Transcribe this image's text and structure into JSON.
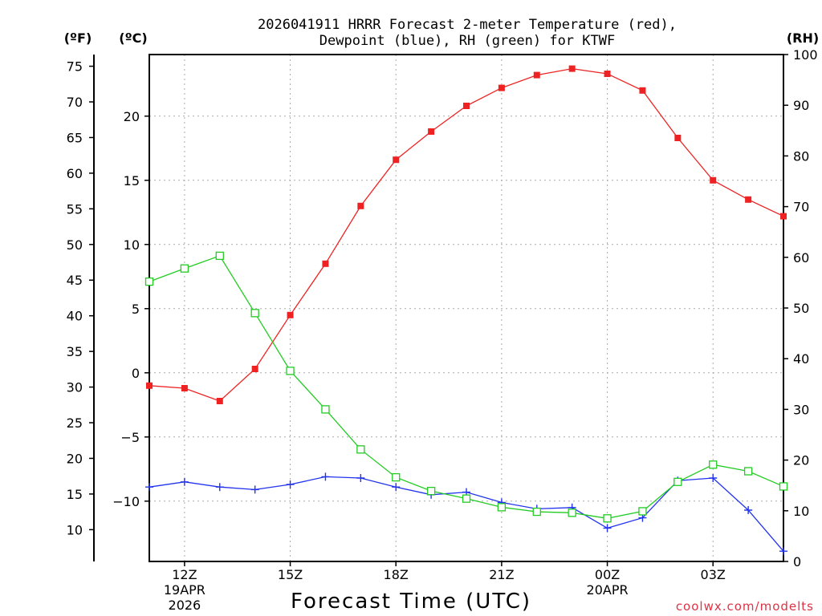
{
  "chart_data": {
    "type": "line",
    "title_line1": "2026041911 HRRR Forecast 2-meter Temperature (red),",
    "title_line2": "Dewpoint (blue), RH (green) for KTWF",
    "xlabel": "Forecast Time (UTC)",
    "left_outer_unit": "(ºF)",
    "left_inner_unit": "(ºC)",
    "right_unit": "(RH)",
    "credit": "coolwx.com/modelts",
    "x_hours": [
      11,
      12,
      13,
      14,
      15,
      16,
      17,
      18,
      19,
      20,
      21,
      22,
      23,
      24,
      25,
      26,
      27,
      28,
      29
    ],
    "x_ticks": [
      {
        "hour": 12,
        "label": "12Z",
        "date1": "19APR",
        "date2": "2026"
      },
      {
        "hour": 15,
        "label": "15Z",
        "date1": "",
        "date2": ""
      },
      {
        "hour": 18,
        "label": "18Z",
        "date1": "",
        "date2": ""
      },
      {
        "hour": 21,
        "label": "21Z",
        "date1": "",
        "date2": ""
      },
      {
        "hour": 24,
        "label": "00Z",
        "date1": "20APR",
        "date2": ""
      },
      {
        "hour": 27,
        "label": "03Z",
        "date1": "",
        "date2": ""
      }
    ],
    "xlim": [
      11,
      29
    ],
    "celsius_ylim": [
      -14.7,
      24.8
    ],
    "celsius_ticks": [
      -10,
      -5,
      0,
      5,
      10,
      15,
      20
    ],
    "fahrenheit_ticks": [
      10,
      15,
      20,
      25,
      30,
      35,
      40,
      45,
      50,
      55,
      60,
      65,
      70,
      75
    ],
    "rh_ylim": [
      0,
      100
    ],
    "rh_ticks": [
      0,
      10,
      20,
      30,
      40,
      50,
      60,
      70,
      80,
      90,
      100
    ],
    "grid": true,
    "series": [
      {
        "name": "2-meter Temperature",
        "unit": "C",
        "color": "#ee2222",
        "marker": "filled-square",
        "values": [
          -1.0,
          -1.2,
          -2.2,
          0.3,
          4.5,
          8.5,
          13.0,
          16.6,
          18.8,
          20.8,
          22.2,
          23.2,
          23.7,
          23.3,
          22.0,
          18.3,
          15.0,
          13.5,
          12.2
        ]
      },
      {
        "name": "Dewpoint",
        "unit": "C",
        "color": "#2233ee",
        "marker": "plus",
        "values": [
          -8.9,
          -8.5,
          -8.9,
          -9.1,
          -8.7,
          -8.1,
          -8.2,
          -8.9,
          -9.5,
          -9.3,
          -10.1,
          -10.6,
          -10.5,
          -12.1,
          -11.3,
          -8.4,
          -8.2,
          -10.7,
          -13.9
        ]
      },
      {
        "name": "RH",
        "unit": "%",
        "color": "#22cc22",
        "marker": "open-square",
        "values": [
          55.2,
          57.8,
          60.3,
          49.0,
          37.6,
          30.0,
          22.1,
          16.6,
          13.9,
          12.4,
          10.7,
          9.8,
          9.6,
          8.5,
          9.9,
          15.7,
          19.1,
          17.8,
          14.8
        ]
      }
    ]
  }
}
